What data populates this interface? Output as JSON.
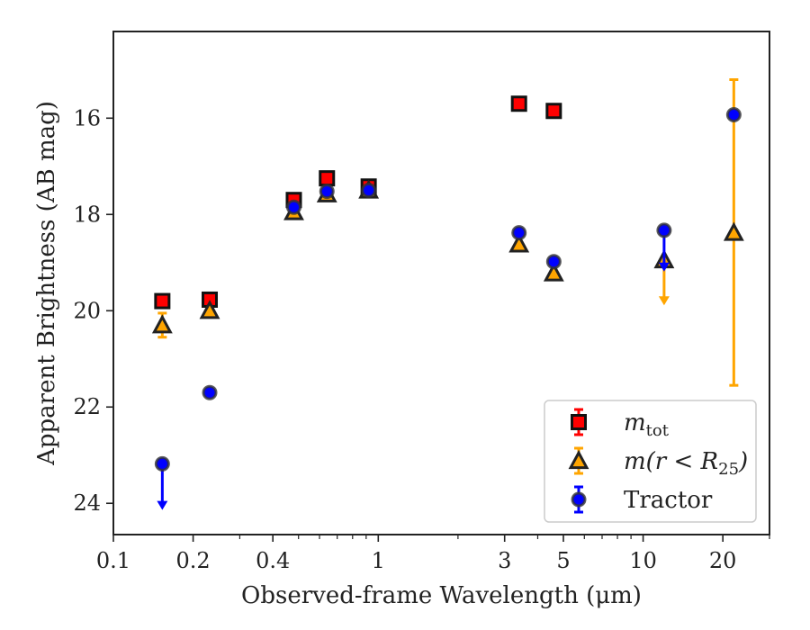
{
  "chart_data": {
    "type": "scatter",
    "xlabel": "Observed-frame Wavelength (μm)",
    "ylabel": "Apparent Brightness (AB mag)",
    "x_scale": "log",
    "xlim": [
      0.1,
      30
    ],
    "ylim": [
      24.65,
      14.2
    ],
    "y_inverted": true,
    "x_ticks": [
      {
        "value": 0.1,
        "label": "0.1"
      },
      {
        "value": 0.2,
        "label": "0.2"
      },
      {
        "value": 0.4,
        "label": "0.4"
      },
      {
        "value": 1,
        "label": "1"
      },
      {
        "value": 3,
        "label": "3"
      },
      {
        "value": 5,
        "label": "5"
      },
      {
        "value": 10,
        "label": "10"
      },
      {
        "value": 20,
        "label": "20"
      }
    ],
    "y_ticks": [
      {
        "value": 16,
        "label": "16"
      },
      {
        "value": 18,
        "label": "18"
      },
      {
        "value": 20,
        "label": "20"
      },
      {
        "value": 22,
        "label": "22"
      },
      {
        "value": 24,
        "label": "24"
      }
    ],
    "grid": false,
    "legend_position": "lower-right",
    "series": [
      {
        "name": "m_tot",
        "legend_label": {
          "main": "m",
          "sub": "tot"
        },
        "marker": "square",
        "color": "#ff0000",
        "edge_color": "#111111",
        "error_color": "#ff0000",
        "points": [
          {
            "x": 0.153,
            "y": 19.8
          },
          {
            "x": 0.231,
            "y": 19.77
          },
          {
            "x": 0.48,
            "y": 17.7
          },
          {
            "x": 0.64,
            "y": 17.25
          },
          {
            "x": 0.92,
            "y": 17.42
          },
          {
            "x": 3.4,
            "y": 15.7
          },
          {
            "x": 4.6,
            "y": 15.85
          }
        ]
      },
      {
        "name": "m(r < R25)",
        "legend_label": {
          "main": "m(r < R",
          "sub": "25",
          "tail": ")"
        },
        "marker": "triangle",
        "color": "#ffa500",
        "edge_color": "#222222",
        "error_color": "#ffa500",
        "points": [
          {
            "x": 0.153,
            "y": 20.3,
            "err_low": 20.55,
            "err_high": 20.05
          },
          {
            "x": 0.231,
            "y": 20.0
          },
          {
            "x": 0.48,
            "y": 17.95
          },
          {
            "x": 0.64,
            "y": 17.58
          },
          {
            "x": 0.92,
            "y": 17.5
          },
          {
            "x": 3.4,
            "y": 18.62
          },
          {
            "x": 4.6,
            "y": 19.22
          },
          {
            "x": 12.0,
            "y": 18.95,
            "upper_limit": true,
            "arrow_to": 19.85
          },
          {
            "x": 22.0,
            "y": 18.38,
            "err_low": 21.55,
            "err_high": 15.2
          }
        ]
      },
      {
        "name": "Tractor",
        "marker": "circle",
        "color": "#0000ff",
        "edge_color": "#333333",
        "error_color": "#0000ff",
        "points": [
          {
            "x": 0.153,
            "y": 23.18,
            "upper_limit": true,
            "arrow_to": 24.1
          },
          {
            "x": 0.231,
            "y": 21.7
          },
          {
            "x": 0.48,
            "y": 17.85
          },
          {
            "x": 0.64,
            "y": 17.52
          },
          {
            "x": 0.92,
            "y": 17.5
          },
          {
            "x": 3.4,
            "y": 18.38
          },
          {
            "x": 4.6,
            "y": 18.98
          },
          {
            "x": 12.0,
            "y": 18.33,
            "upper_limit": true,
            "arrow_to": 19.15
          },
          {
            "x": 22.0,
            "y": 15.93
          }
        ]
      }
    ]
  },
  "colors": {
    "axis": "#222222",
    "red": "#ff0000",
    "orange": "#ffa500",
    "blue": "#0000ff"
  }
}
